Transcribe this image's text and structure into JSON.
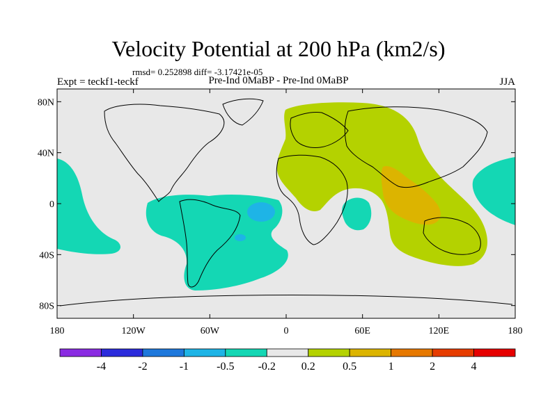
{
  "title": "Velocity Potential at 200 hPa (km2/s)",
  "stats": "rmsd= 0.252898 diff= -3.17421e-05",
  "left_label": "Expt = teckf1-teckf",
  "center_label": "Pre-Ind 0MaBP - Pre-Ind 0MaBP",
  "right_label": "JJA",
  "map": {
    "lat_labels": [
      {
        "lat": 80,
        "text": "80N"
      },
      {
        "lat": 40,
        "text": "40N"
      },
      {
        "lat": 0,
        "text": "0"
      },
      {
        "lat": -40,
        "text": "40S"
      },
      {
        "lat": -80,
        "text": "80S"
      }
    ],
    "lon_labels": [
      {
        "lon": -180,
        "text": "180"
      },
      {
        "lon": -120,
        "text": "120W"
      },
      {
        "lon": -60,
        "text": "60W"
      },
      {
        "lon": 0,
        "text": "0"
      },
      {
        "lon": 60,
        "text": "60E"
      },
      {
        "lon": 120,
        "text": "120E"
      },
      {
        "lon": 180,
        "text": "180"
      }
    ]
  },
  "colorbar": {
    "colors": [
      "#8a2be2",
      "#2b2bdc",
      "#1e78dc",
      "#1eb4e6",
      "#14d7b4",
      "#e8e8e8",
      "#b4d200",
      "#dcb400",
      "#e67800",
      "#e63c00",
      "#e60000"
    ],
    "labels": [
      "-4",
      "-2",
      "-1",
      "-0.5",
      "-0.2",
      "0.2",
      "0.5",
      "1",
      "2",
      "4"
    ]
  },
  "colors": {
    "background_field": "#e8e8e8",
    "cyan": "#14d7b4",
    "blue_core": "#1eb4e6",
    "yellow_green": "#b4d200",
    "orange": "#dcb400"
  }
}
